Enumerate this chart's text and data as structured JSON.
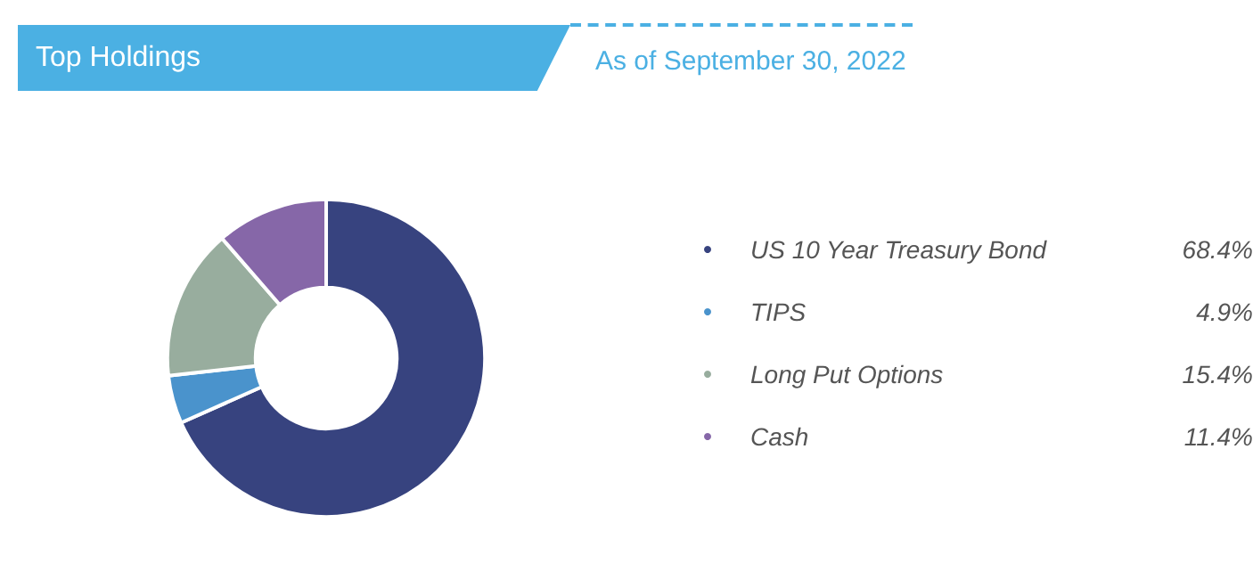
{
  "chart_data": {
    "type": "donut",
    "title": "Top Holdings",
    "subtitle": "As of September 30, 2022",
    "categories": [
      "US 10 Year Treasury Bond",
      "TIPS",
      "Long Put Options",
      "Cash"
    ],
    "values": [
      68.4,
      4.9,
      15.4,
      11.4
    ],
    "value_labels": [
      "68.4%",
      "4.9%",
      "15.4%",
      "11.4%"
    ],
    "colors": [
      "#37437f",
      "#4a93cc",
      "#98ad9e",
      "#8667a8"
    ],
    "legend": "right"
  }
}
